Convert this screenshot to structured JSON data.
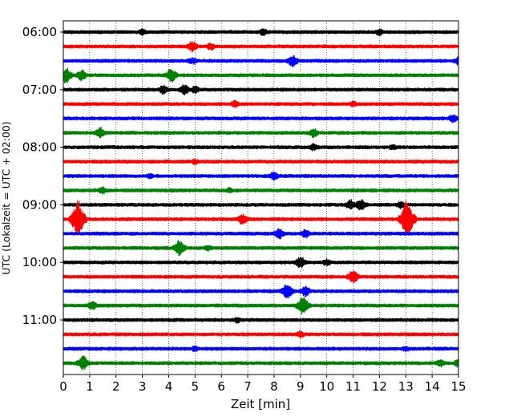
{
  "chart_data": {
    "type": "line",
    "title": "",
    "xlabel": "Zeit  [min]",
    "ylabel": "UTC (Lokalzeit = UTC + 02:00)",
    "xlim": [
      0,
      15
    ],
    "x_ticks": [
      0,
      1,
      2,
      3,
      4,
      5,
      6,
      7,
      8,
      9,
      10,
      11,
      12,
      13,
      14,
      15
    ],
    "x_tick_labels": [
      "0",
      "1",
      "2",
      "3",
      "4",
      "5",
      "6",
      "7",
      "8",
      "9",
      "10",
      "11",
      "12",
      "13",
      "14",
      "15"
    ],
    "y_tick_labels": [
      "06:00",
      "07:00",
      "08:00",
      "09:00",
      "10:00",
      "11:00"
    ],
    "y_tick_rows": [
      0,
      4,
      8,
      12,
      16,
      20
    ],
    "grid": "vertical dotted",
    "trace_colors": [
      "#000000",
      "#ff0000",
      "#0000ff",
      "#008000"
    ],
    "rows": [
      {
        "start": "06:00",
        "color": "#000000",
        "events": [
          [
            3.0,
            5
          ],
          [
            7.6,
            5
          ],
          [
            12.0,
            5
          ]
        ]
      },
      {
        "start": "06:15",
        "color": "#ff0000",
        "events": [
          [
            4.9,
            7
          ],
          [
            5.6,
            5
          ]
        ]
      },
      {
        "start": "06:30",
        "color": "#0000ff",
        "events": [
          [
            4.9,
            5
          ],
          [
            8.7,
            8
          ],
          [
            15.0,
            6
          ]
        ]
      },
      {
        "start": "06:45",
        "color": "#008000",
        "events": [
          [
            0.1,
            10
          ],
          [
            0.7,
            7
          ],
          [
            4.1,
            9
          ]
        ]
      },
      {
        "start": "07:00",
        "color": "#000000",
        "events": [
          [
            3.8,
            6
          ],
          [
            4.6,
            7
          ],
          [
            5.0,
            5
          ]
        ]
      },
      {
        "start": "07:15",
        "color": "#ff0000",
        "events": [
          [
            6.5,
            5
          ],
          [
            11.0,
            4
          ]
        ]
      },
      {
        "start": "07:30",
        "color": "#0000ff",
        "events": [
          [
            14.8,
            6
          ]
        ]
      },
      {
        "start": "07:45",
        "color": "#008000",
        "events": [
          [
            1.4,
            7
          ],
          [
            9.5,
            6
          ]
        ]
      },
      {
        "start": "08:00",
        "color": "#000000",
        "events": [
          [
            9.5,
            5
          ],
          [
            12.5,
            4
          ]
        ]
      },
      {
        "start": "08:15",
        "color": "#ff0000",
        "events": [
          [
            5.0,
            4
          ]
        ]
      },
      {
        "start": "08:30",
        "color": "#0000ff",
        "events": [
          [
            3.3,
            4
          ],
          [
            8.0,
            6
          ]
        ]
      },
      {
        "start": "08:45",
        "color": "#008000",
        "events": [
          [
            1.5,
            5
          ],
          [
            6.3,
            4
          ]
        ]
      },
      {
        "start": "09:00",
        "color": "#000000",
        "events": [
          [
            10.9,
            7
          ],
          [
            11.3,
            8
          ],
          [
            12.8,
            5
          ]
        ]
      },
      {
        "start": "09:15",
        "color": "#ff0000",
        "events": [
          [
            0.55,
            24
          ],
          [
            6.8,
            7
          ],
          [
            13.05,
            24
          ]
        ]
      },
      {
        "start": "09:30",
        "color": "#0000ff",
        "events": [
          [
            8.2,
            7
          ],
          [
            9.2,
            6
          ]
        ]
      },
      {
        "start": "09:45",
        "color": "#008000",
        "events": [
          [
            4.4,
            10
          ],
          [
            5.5,
            4
          ]
        ]
      },
      {
        "start": "10:00",
        "color": "#000000",
        "events": [
          [
            9.0,
            8
          ],
          [
            10.0,
            5
          ]
        ]
      },
      {
        "start": "10:15",
        "color": "#ff0000",
        "events": [
          [
            11.0,
            9
          ]
        ]
      },
      {
        "start": "10:30",
        "color": "#0000ff",
        "events": [
          [
            8.5,
            10
          ],
          [
            9.2,
            7
          ]
        ]
      },
      {
        "start": "10:45",
        "color": "#008000",
        "events": [
          [
            1.1,
            6
          ],
          [
            9.1,
            12
          ]
        ]
      },
      {
        "start": "11:00",
        "color": "#000000",
        "events": [
          [
            6.6,
            4
          ]
        ]
      },
      {
        "start": "11:15",
        "color": "#ff0000",
        "events": [
          [
            9.0,
            5
          ]
        ]
      },
      {
        "start": "11:30",
        "color": "#0000ff",
        "events": [
          [
            5.0,
            4
          ],
          [
            13.0,
            4
          ]
        ]
      },
      {
        "start": "11:45",
        "color": "#008000",
        "events": [
          [
            0.75,
            9
          ],
          [
            14.3,
            5
          ],
          [
            15.0,
            6
          ]
        ]
      }
    ]
  }
}
